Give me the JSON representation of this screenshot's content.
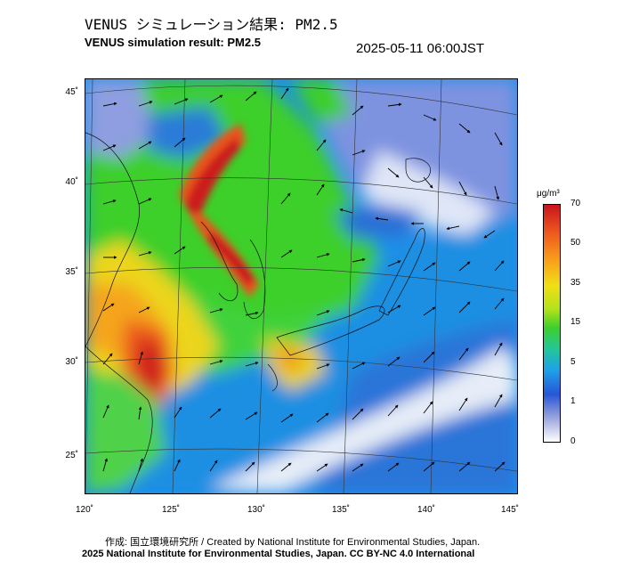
{
  "header": {
    "title_jp": "VENUS シミュレーション結果: PM2.5",
    "title_en": "VENUS simulation result: PM2.5",
    "datetime": "2025-05-11 06:00JST"
  },
  "map": {
    "lat_labels": [
      "45˚",
      "40˚",
      "35˚",
      "30˚",
      "25˚"
    ],
    "lon_labels": [
      "120˚",
      "125˚",
      "130˚",
      "135˚",
      "140˚",
      "145˚"
    ],
    "field": "PM2.5 concentration with wind vectors",
    "colors": {
      "ocean_low": "#1e8fe8",
      "land_low": "#3ccf2c",
      "high": "#d81a1a",
      "clean": "#dfe6f7"
    }
  },
  "colorbar": {
    "unit": "μg/m³",
    "ticks": [
      "70",
      "50",
      "35",
      "15",
      "5",
      "1",
      "0"
    ]
  },
  "footer": {
    "credit_jp": "作成: 国立環境研究所 / Created by National Institute for Environmental Studies, Japan.",
    "credit_en": "2025 National Institute for Environmental Studies, Japan. CC BY-NC 4.0 International"
  }
}
